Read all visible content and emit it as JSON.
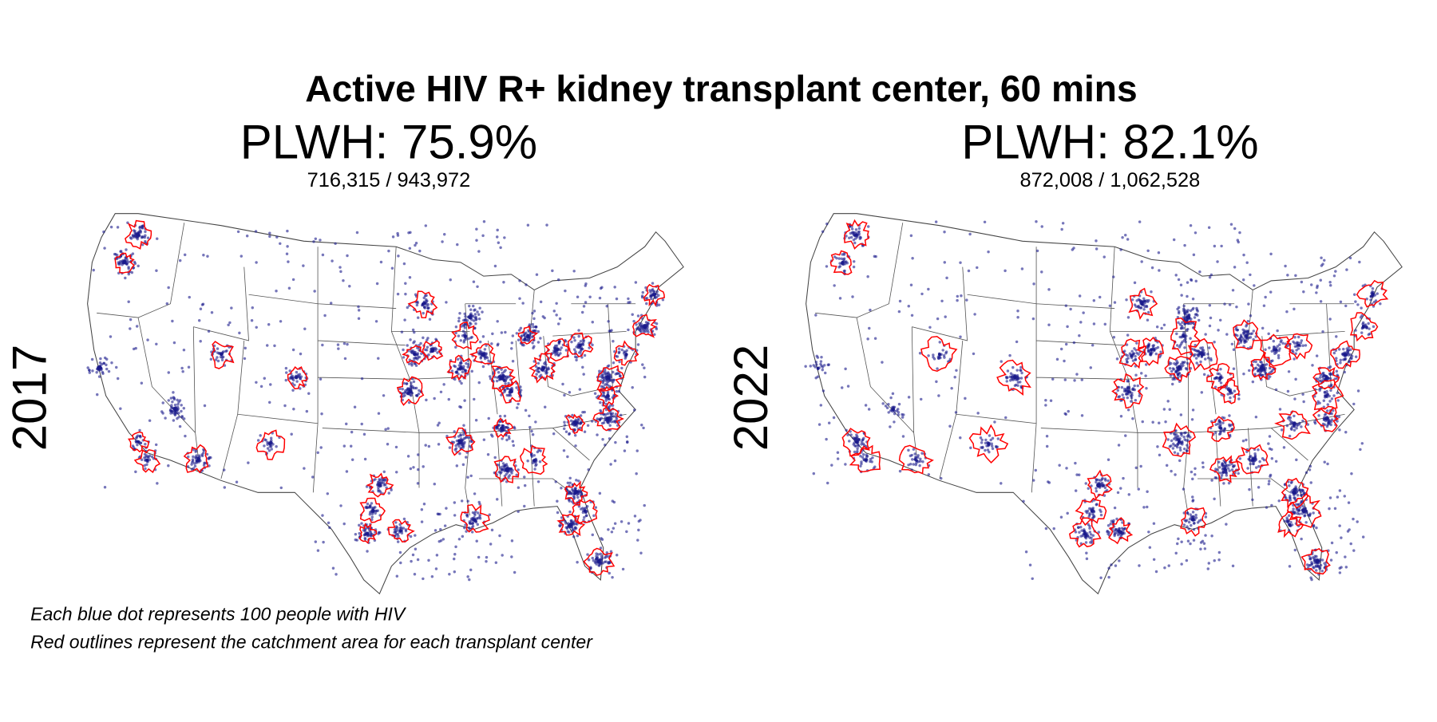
{
  "title": "Active HIV R+ kidney transplant center, 60 mins",
  "panels": [
    {
      "year": "2017",
      "plwh_label": "PLWH: 75.9%",
      "plwh_percent": 75.9,
      "counts": "716,315 / 943,972"
    },
    {
      "year": "2022",
      "plwh_label": "PLWH: 82.1%",
      "plwh_percent": 82.1,
      "counts": "872,008 / 1,062,528"
    }
  ],
  "footnotes": [
    "Each blue dot represents 100 people with HIV",
    "Red outlines represent the catchment area for each transplant center"
  ],
  "colors": {
    "dots": "#1a1a8c",
    "catchment": "#ff0000"
  }
}
